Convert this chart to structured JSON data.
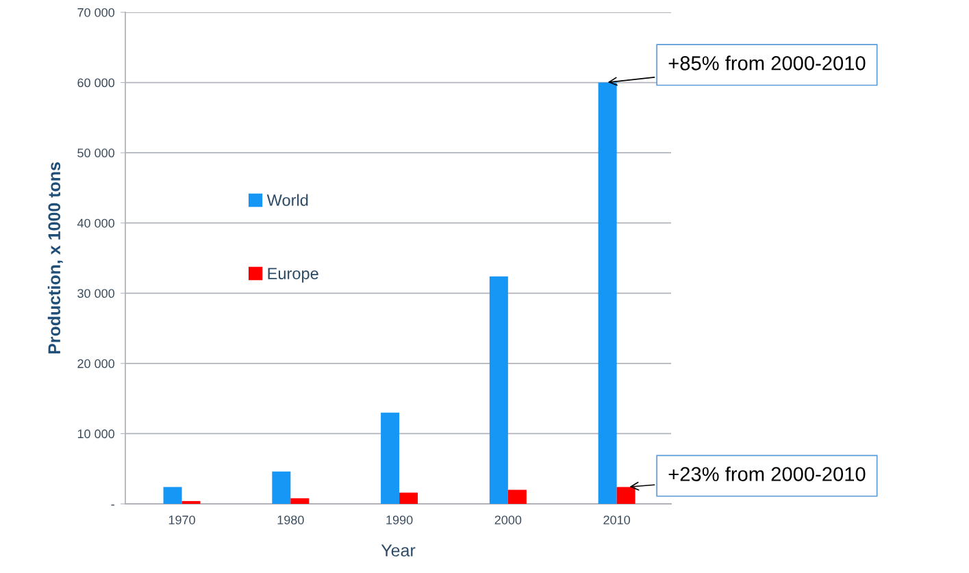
{
  "chart_data": {
    "type": "bar",
    "xlabel": "Year",
    "ylabel": "Production, x 1000 tons",
    "categories": [
      "1970",
      "1980",
      "1990",
      "2000",
      "2010"
    ],
    "series": [
      {
        "name": "World",
        "color": "#1696f5",
        "values": [
          2400,
          4600,
          13000,
          32400,
          60000
        ]
      },
      {
        "name": "Europe",
        "color": "#ff0000",
        "values": [
          400,
          800,
          1600,
          2000,
          2400
        ]
      }
    ],
    "ylim": [
      0,
      70000
    ],
    "yticks": [
      {
        "value": 0,
        "label": "-"
      },
      {
        "value": 10000,
        "label": "10 000"
      },
      {
        "value": 20000,
        "label": "20 000"
      },
      {
        "value": 30000,
        "label": "30 000"
      },
      {
        "value": 40000,
        "label": "40 000"
      },
      {
        "value": 50000,
        "label": "50 000"
      },
      {
        "value": 60000,
        "label": "60 000"
      },
      {
        "value": 70000,
        "label": "70 000"
      }
    ],
    "grid": "y",
    "legend": "left",
    "annotations": [
      {
        "text": "+85% from 2000-2010",
        "x": "2010",
        "y": 60000
      },
      {
        "text": "+23% from 2000-2010",
        "x": "2010",
        "y": 2400
      }
    ]
  }
}
